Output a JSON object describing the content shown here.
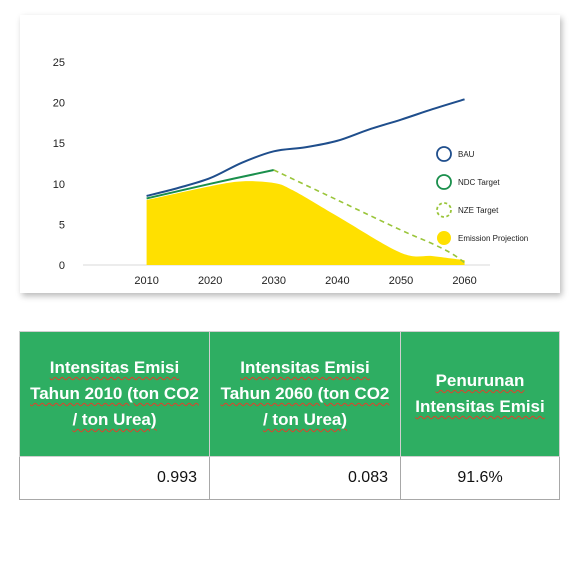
{
  "chart_data": {
    "type": "area",
    "x_ticks": [
      "2010",
      "2020",
      "2030",
      "2040",
      "2050",
      "2060"
    ],
    "y_ticks": [
      "0",
      "5",
      "10",
      "15",
      "20",
      "25"
    ],
    "ylim": [
      0,
      25
    ],
    "xlim": [
      2000,
      2064
    ],
    "series": [
      {
        "name": "BAU",
        "type": "line",
        "style": "solid",
        "color": "#1f4e8c",
        "x": [
          2010,
          2015,
          2020,
          2025,
          2030,
          2035,
          2040,
          2045,
          2050,
          2055,
          2060
        ],
        "y": [
          8.5,
          9.5,
          10.7,
          12.6,
          14.0,
          14.5,
          15.3,
          16.7,
          17.9,
          19.2,
          20.4
        ]
      },
      {
        "name": "NDC Target",
        "type": "line",
        "style": "solid",
        "color": "#1a8f4c",
        "x": [
          2010,
          2020,
          2030
        ],
        "y": [
          8.2,
          10.0,
          11.7
        ]
      },
      {
        "name": "NZE Target",
        "type": "line",
        "style": "dashed",
        "color": "#9ac53a",
        "x": [
          2030,
          2040,
          2050,
          2055,
          2058,
          2060
        ],
        "y": [
          11.7,
          8.0,
          4.3,
          2.6,
          1.4,
          0.3
        ]
      },
      {
        "name": "Emission Projection",
        "type": "area",
        "color": "#ffe000",
        "x": [
          2010,
          2020,
          2025,
          2030,
          2033,
          2040,
          2050,
          2055,
          2060
        ],
        "y": [
          8.0,
          9.7,
          10.3,
          10.1,
          9.2,
          6.0,
          1.5,
          1.1,
          0.6
        ]
      }
    ],
    "legend_position": "right",
    "grid": false
  },
  "table": {
    "headers": [
      "Intensitas Emisi Tahun 2010 (ton CO2 / ton Urea)",
      "Intensitas Emisi Tahun 2060 (ton CO2 / ton Urea)",
      "Penurunan Intensitas Emisi"
    ],
    "values": [
      "0.993",
      "0.083",
      "91.6%"
    ]
  }
}
